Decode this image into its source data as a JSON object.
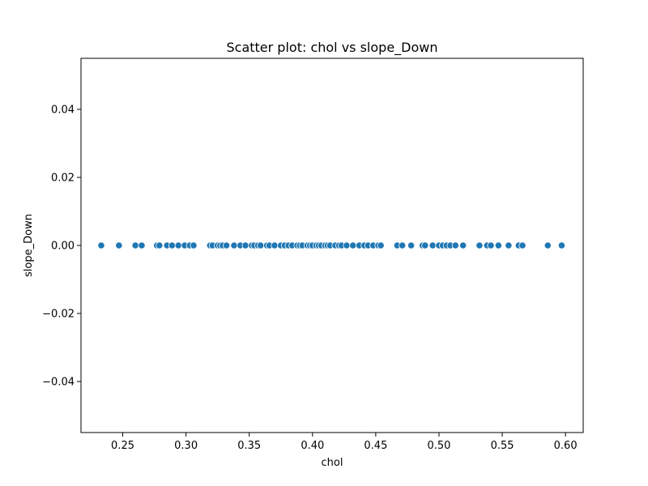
{
  "chart_data": {
    "type": "scatter",
    "title": "Scatter plot: chol vs slope_Down",
    "xlabel": "chol",
    "ylabel": "slope_Down",
    "xlim": [
      0.217,
      0.614
    ],
    "ylim": [
      -0.055,
      0.055
    ],
    "x_ticks": [
      0.25,
      0.3,
      0.35,
      0.4,
      0.45,
      0.5,
      0.55,
      0.6
    ],
    "x_tick_labels": [
      "0.25",
      "0.30",
      "0.35",
      "0.40",
      "0.45",
      "0.50",
      "0.55",
      "0.60"
    ],
    "y_ticks": [
      -0.04,
      -0.02,
      0.0,
      0.02,
      0.04
    ],
    "y_tick_labels": [
      "−0.04",
      "−0.02",
      "0.00",
      "0.02",
      "0.04"
    ],
    "grid": false,
    "marker_color": "#1f77b4",
    "marker_edge_color": "#ffffff",
    "points": [
      {
        "x": 0.233,
        "y": 0
      },
      {
        "x": 0.247,
        "y": 0
      },
      {
        "x": 0.26,
        "y": 0
      },
      {
        "x": 0.265,
        "y": 0
      },
      {
        "x": 0.277,
        "y": 0
      },
      {
        "x": 0.279,
        "y": 0
      },
      {
        "x": 0.285,
        "y": 0
      },
      {
        "x": 0.289,
        "y": 0
      },
      {
        "x": 0.294,
        "y": 0
      },
      {
        "x": 0.299,
        "y": 0
      },
      {
        "x": 0.303,
        "y": 0
      },
      {
        "x": 0.306,
        "y": 0
      },
      {
        "x": 0.319,
        "y": 0
      },
      {
        "x": 0.321,
        "y": 0
      },
      {
        "x": 0.325,
        "y": 0
      },
      {
        "x": 0.327,
        "y": 0
      },
      {
        "x": 0.329,
        "y": 0
      },
      {
        "x": 0.332,
        "y": 0
      },
      {
        "x": 0.338,
        "y": 0
      },
      {
        "x": 0.343,
        "y": 0
      },
      {
        "x": 0.347,
        "y": 0
      },
      {
        "x": 0.352,
        "y": 0
      },
      {
        "x": 0.354,
        "y": 0
      },
      {
        "x": 0.357,
        "y": 0
      },
      {
        "x": 0.359,
        "y": 0
      },
      {
        "x": 0.364,
        "y": 0
      },
      {
        "x": 0.366,
        "y": 0
      },
      {
        "x": 0.37,
        "y": 0
      },
      {
        "x": 0.375,
        "y": 0
      },
      {
        "x": 0.378,
        "y": 0
      },
      {
        "x": 0.381,
        "y": 0
      },
      {
        "x": 0.384,
        "y": 0
      },
      {
        "x": 0.388,
        "y": 0
      },
      {
        "x": 0.39,
        "y": 0
      },
      {
        "x": 0.392,
        "y": 0
      },
      {
        "x": 0.396,
        "y": 0
      },
      {
        "x": 0.398,
        "y": 0
      },
      {
        "x": 0.4,
        "y": 0
      },
      {
        "x": 0.403,
        "y": 0
      },
      {
        "x": 0.405,
        "y": 0
      },
      {
        "x": 0.407,
        "y": 0
      },
      {
        "x": 0.41,
        "y": 0
      },
      {
        "x": 0.412,
        "y": 0
      },
      {
        "x": 0.414,
        "y": 0
      },
      {
        "x": 0.418,
        "y": 0
      },
      {
        "x": 0.421,
        "y": 0
      },
      {
        "x": 0.423,
        "y": 0
      },
      {
        "x": 0.427,
        "y": 0
      },
      {
        "x": 0.432,
        "y": 0
      },
      {
        "x": 0.437,
        "y": 0
      },
      {
        "x": 0.441,
        "y": 0
      },
      {
        "x": 0.444,
        "y": 0
      },
      {
        "x": 0.448,
        "y": 0
      },
      {
        "x": 0.452,
        "y": 0
      },
      {
        "x": 0.454,
        "y": 0
      },
      {
        "x": 0.467,
        "y": 0
      },
      {
        "x": 0.471,
        "y": 0
      },
      {
        "x": 0.478,
        "y": 0
      },
      {
        "x": 0.487,
        "y": 0
      },
      {
        "x": 0.489,
        "y": 0
      },
      {
        "x": 0.495,
        "y": 0
      },
      {
        "x": 0.5,
        "y": 0
      },
      {
        "x": 0.503,
        "y": 0
      },
      {
        "x": 0.506,
        "y": 0
      },
      {
        "x": 0.509,
        "y": 0
      },
      {
        "x": 0.513,
        "y": 0
      },
      {
        "x": 0.519,
        "y": 0
      },
      {
        "x": 0.532,
        "y": 0
      },
      {
        "x": 0.538,
        "y": 0
      },
      {
        "x": 0.541,
        "y": 0
      },
      {
        "x": 0.547,
        "y": 0
      },
      {
        "x": 0.555,
        "y": 0
      },
      {
        "x": 0.563,
        "y": 0
      },
      {
        "x": 0.566,
        "y": 0
      },
      {
        "x": 0.586,
        "y": 0
      },
      {
        "x": 0.597,
        "y": 0
      }
    ]
  }
}
